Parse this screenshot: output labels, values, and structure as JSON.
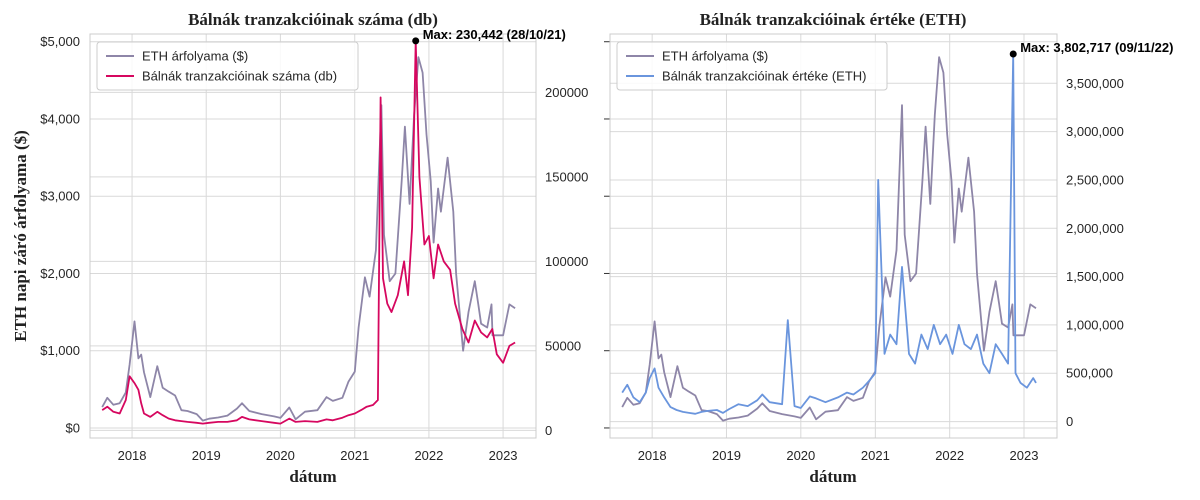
{
  "chart_data": [
    {
      "type": "line",
      "title": "Bálnák tranzakcióinak száma (db)",
      "xlabel": "dátum",
      "ylabel": "ETH napi záró árfolyama ($)",
      "x_ticks": [
        "2018",
        "2019",
        "2020",
        "2021",
        "2022",
        "2023"
      ],
      "xlim": [
        "2017-06-08",
        "2023-06-12"
      ],
      "left_axis": {
        "ticks": [
          "$0",
          "$1,000",
          "$2,000",
          "$3,000",
          "$4,000",
          "$5,000"
        ],
        "tick_values": [
          0,
          1000,
          2000,
          3000,
          4000,
          5000
        ],
        "ylim": [
          -130,
          5100
        ]
      },
      "right_axis": {
        "ticks": [
          "0",
          "50000",
          "100000",
          "150000",
          "200000"
        ],
        "tick_values": [
          0,
          50000,
          100000,
          150000,
          200000
        ],
        "ylim": [
          -4500,
          234500
        ]
      },
      "legend": {
        "position": "top-left",
        "entries": [
          "ETH árfolyama ($)",
          "Bálnák tranzakcióinak száma (db)"
        ]
      },
      "series": [
        {
          "name": "ETH árfolyama ($)",
          "axis": "left",
          "color": "#8e86a8",
          "x": [
            "2017-08-07",
            "2017-09-01",
            "2017-10-01",
            "2017-11-01",
            "2017-12-01",
            "2017-12-20",
            "2018-01-13",
            "2018-02-01",
            "2018-02-15",
            "2018-03-01",
            "2018-04-01",
            "2018-05-05",
            "2018-06-01",
            "2018-07-01",
            "2018-08-01",
            "2018-09-01",
            "2018-10-01",
            "2018-11-15",
            "2018-12-15",
            "2019-01-15",
            "2019-03-01",
            "2019-04-15",
            "2019-06-01",
            "2019-06-26",
            "2019-08-01",
            "2019-10-01",
            "2019-12-01",
            "2020-01-01",
            "2020-02-14",
            "2020-03-16",
            "2020-05-01",
            "2020-07-01",
            "2020-08-15",
            "2020-09-15",
            "2020-11-01",
            "2020-12-01",
            "2021-01-01",
            "2021-01-20",
            "2021-02-20",
            "2021-03-15",
            "2021-04-15",
            "2021-05-12",
            "2021-05-25",
            "2021-06-22",
            "2021-07-20",
            "2021-08-20",
            "2021-09-05",
            "2021-09-28",
            "2021-10-20",
            "2021-11-10",
            "2021-12-01",
            "2021-12-20",
            "2022-01-10",
            "2022-01-24",
            "2022-02-15",
            "2022-03-01",
            "2022-04-03",
            "2022-05-01",
            "2022-05-15",
            "2022-06-18",
            "2022-07-15",
            "2022-08-15",
            "2022-09-01",
            "2022-09-15",
            "2022-10-15",
            "2022-11-05",
            "2022-11-10",
            "2022-12-15",
            "2023-01-01",
            "2023-02-01",
            "2023-03-01"
          ],
          "y": [
            270,
            390,
            300,
            320,
            460,
            820,
            1380,
            900,
            950,
            720,
            400,
            800,
            520,
            470,
            420,
            230,
            220,
            180,
            95,
            120,
            135,
            160,
            250,
            320,
            220,
            180,
            150,
            130,
            265,
            112,
            210,
            230,
            400,
            350,
            390,
            600,
            730,
            1300,
            1950,
            1700,
            2300,
            4180,
            2500,
            1900,
            2000,
            3200,
            3900,
            2900,
            4050,
            4800,
            4600,
            3800,
            3200,
            2400,
            3100,
            2800,
            3500,
            2800,
            2000,
            1000,
            1500,
            1900,
            1600,
            1350,
            1300,
            1600,
            1200,
            1200,
            1200,
            1600,
            1550
          ]
        },
        {
          "name": "Bálnák tranzakcióinak száma (db)",
          "axis": "right",
          "color": "#d6075f",
          "x": [
            "2017-08-07",
            "2017-09-01",
            "2017-10-01",
            "2017-11-01",
            "2017-12-01",
            "2017-12-20",
            "2018-01-13",
            "2018-02-01",
            "2018-02-15",
            "2018-03-01",
            "2018-04-01",
            "2018-05-05",
            "2018-06-01",
            "2018-07-01",
            "2018-08-01",
            "2018-09-01",
            "2018-10-01",
            "2018-11-15",
            "2018-12-15",
            "2019-01-15",
            "2019-03-01",
            "2019-04-15",
            "2019-06-01",
            "2019-06-26",
            "2019-08-01",
            "2019-10-01",
            "2019-12-01",
            "2020-01-01",
            "2020-02-14",
            "2020-03-16",
            "2020-05-01",
            "2020-07-01",
            "2020-08-15",
            "2020-09-15",
            "2020-11-01",
            "2020-12-01",
            "2021-01-01",
            "2021-02-01",
            "2021-03-01",
            "2021-04-01",
            "2021-04-25",
            "2021-05-08",
            "2021-05-20",
            "2021-06-10",
            "2021-07-01",
            "2021-08-01",
            "2021-09-01",
            "2021-09-20",
            "2021-10-10",
            "2021-10-28",
            "2021-11-15",
            "2021-12-10",
            "2022-01-01",
            "2022-01-24",
            "2022-02-15",
            "2022-03-15",
            "2022-04-15",
            "2022-05-10",
            "2022-06-15",
            "2022-07-15",
            "2022-08-15",
            "2022-09-15",
            "2022-10-15",
            "2022-11-09",
            "2022-12-01",
            "2023-01-01",
            "2023-02-01",
            "2023-03-01"
          ],
          "y": [
            12000,
            14000,
            11000,
            10000,
            18000,
            32000,
            28000,
            24000,
            16000,
            10000,
            8000,
            11000,
            9000,
            7000,
            6000,
            5500,
            5000,
            4500,
            4000,
            4500,
            5000,
            5000,
            6000,
            8000,
            6500,
            5500,
            4500,
            4000,
            7000,
            5000,
            5500,
            5000,
            6500,
            6000,
            7500,
            9000,
            10000,
            12000,
            14000,
            15000,
            18000,
            197000,
            90000,
            75000,
            70000,
            80000,
            100000,
            80000,
            120000,
            230442,
            150000,
            110000,
            115000,
            90000,
            110000,
            100000,
            95000,
            75000,
            60000,
            52000,
            65000,
            58000,
            55000,
            60000,
            45000,
            40000,
            50000,
            52000
          ]
        }
      ],
      "annotation": {
        "text": "Max: 230,442 (28/10/21)",
        "x": "2021-10-28",
        "y": 230442,
        "axis": "right"
      }
    },
    {
      "type": "line",
      "title": "Bálnák tranzakcióinak értéke (ETH)",
      "xlabel": "dátum",
      "x_ticks": [
        "2018",
        "2019",
        "2020",
        "2021",
        "2022",
        "2023"
      ],
      "xlim": [
        "2017-06-08",
        "2023-06-12"
      ],
      "left_axis": {
        "ylim": [
          -130,
          5100
        ]
      },
      "right_axis": {
        "ticks": [
          "0",
          "500,000",
          "1,000,000",
          "1,500,000",
          "2,000,000",
          "2,500,000",
          "3,000,000",
          "3,500,000"
        ],
        "tick_values": [
          0,
          500000,
          1000000,
          1500000,
          2000000,
          2500000,
          3000000,
          3500000
        ],
        "ylim": [
          -170000,
          4010000
        ]
      },
      "legend": {
        "position": "top-left",
        "entries": [
          "ETH árfolyama ($)",
          "Bálnák tranzakcióinak értéke (ETH)"
        ]
      },
      "series": [
        {
          "name": "ETH árfolyama ($)",
          "axis": "left",
          "color": "#8e86a8",
          "x": [
            "2017-08-07",
            "2017-09-01",
            "2017-10-01",
            "2017-11-01",
            "2017-12-01",
            "2017-12-20",
            "2018-01-13",
            "2018-02-01",
            "2018-02-15",
            "2018-03-01",
            "2018-04-01",
            "2018-05-05",
            "2018-06-01",
            "2018-07-01",
            "2018-08-01",
            "2018-09-01",
            "2018-10-01",
            "2018-11-15",
            "2018-12-15",
            "2019-01-15",
            "2019-03-01",
            "2019-04-15",
            "2019-06-01",
            "2019-06-26",
            "2019-08-01",
            "2019-10-01",
            "2019-12-01",
            "2020-01-01",
            "2020-02-14",
            "2020-03-16",
            "2020-05-01",
            "2020-07-01",
            "2020-08-15",
            "2020-09-15",
            "2020-11-01",
            "2020-12-01",
            "2021-01-01",
            "2021-01-20",
            "2021-02-20",
            "2021-03-15",
            "2021-04-15",
            "2021-05-12",
            "2021-05-25",
            "2021-06-22",
            "2021-07-20",
            "2021-08-20",
            "2021-09-05",
            "2021-09-28",
            "2021-10-20",
            "2021-11-10",
            "2021-12-01",
            "2021-12-20",
            "2022-01-10",
            "2022-01-24",
            "2022-02-15",
            "2022-03-01",
            "2022-04-03",
            "2022-05-01",
            "2022-05-15",
            "2022-06-18",
            "2022-07-15",
            "2022-08-15",
            "2022-09-01",
            "2022-09-15",
            "2022-10-15",
            "2022-11-05",
            "2022-11-10",
            "2022-12-15",
            "2023-01-01",
            "2023-02-01",
            "2023-03-01"
          ],
          "y": [
            270,
            390,
            300,
            320,
            460,
            820,
            1380,
            900,
            950,
            720,
            400,
            800,
            520,
            470,
            420,
            230,
            220,
            180,
            95,
            120,
            135,
            160,
            250,
            320,
            220,
            180,
            150,
            130,
            265,
            112,
            210,
            230,
            400,
            350,
            390,
            600,
            730,
            1300,
            1950,
            1700,
            2300,
            4180,
            2500,
            1900,
            2000,
            3200,
            3900,
            2900,
            4050,
            4800,
            4600,
            3800,
            3200,
            2400,
            3100,
            2800,
            3500,
            2800,
            2000,
            1000,
            1500,
            1900,
            1600,
            1350,
            1300,
            1600,
            1200,
            1200,
            1200,
            1600,
            1550
          ]
        },
        {
          "name": "Bálnák tranzakcióinak értéke (ETH)",
          "axis": "right",
          "color": "#6a95dd",
          "x": [
            "2017-08-07",
            "2017-09-01",
            "2017-10-01",
            "2017-11-01",
            "2017-12-01",
            "2017-12-20",
            "2018-01-13",
            "2018-02-01",
            "2018-03-01",
            "2018-04-01",
            "2018-05-01",
            "2018-06-01",
            "2018-07-01",
            "2018-08-01",
            "2018-09-01",
            "2018-10-01",
            "2018-11-15",
            "2018-12-15",
            "2019-01-15",
            "2019-03-01",
            "2019-04-15",
            "2019-06-01",
            "2019-06-26",
            "2019-08-01",
            "2019-10-01",
            "2019-10-29",
            "2019-12-01",
            "2020-01-01",
            "2020-02-14",
            "2020-03-16",
            "2020-05-01",
            "2020-07-01",
            "2020-08-15",
            "2020-09-15",
            "2020-11-01",
            "2020-12-01",
            "2021-01-01",
            "2021-01-15",
            "2021-02-15",
            "2021-03-15",
            "2021-04-15",
            "2021-05-12",
            "2021-06-15",
            "2021-07-15",
            "2021-08-15",
            "2021-09-15",
            "2021-10-15",
            "2021-11-15",
            "2021-12-15",
            "2022-01-15",
            "2022-02-15",
            "2022-03-15",
            "2022-04-15",
            "2022-05-15",
            "2022-06-15",
            "2022-07-15",
            "2022-08-15",
            "2022-09-15",
            "2022-10-15",
            "2022-11-09",
            "2022-11-20",
            "2022-12-15",
            "2023-01-15",
            "2023-02-15",
            "2023-03-01"
          ],
          "y": [
            300000,
            380000,
            250000,
            200000,
            300000,
            450000,
            550000,
            350000,
            250000,
            150000,
            120000,
            100000,
            90000,
            80000,
            100000,
            110000,
            120000,
            90000,
            130000,
            180000,
            160000,
            220000,
            280000,
            200000,
            180000,
            1050000,
            160000,
            140000,
            260000,
            240000,
            200000,
            250000,
            300000,
            280000,
            350000,
            420000,
            500000,
            2500000,
            700000,
            900000,
            800000,
            1600000,
            700000,
            600000,
            900000,
            750000,
            1000000,
            800000,
            900000,
            700000,
            1000000,
            800000,
            750000,
            900000,
            600000,
            500000,
            800000,
            700000,
            600000,
            3802717,
            500000,
            400000,
            350000,
            450000,
            400000
          ]
        }
      ],
      "annotation": {
        "text": "Max: 3,802,717 (09/11/22)",
        "x": "2022-11-09",
        "y": 3802717,
        "axis": "right"
      }
    }
  ]
}
